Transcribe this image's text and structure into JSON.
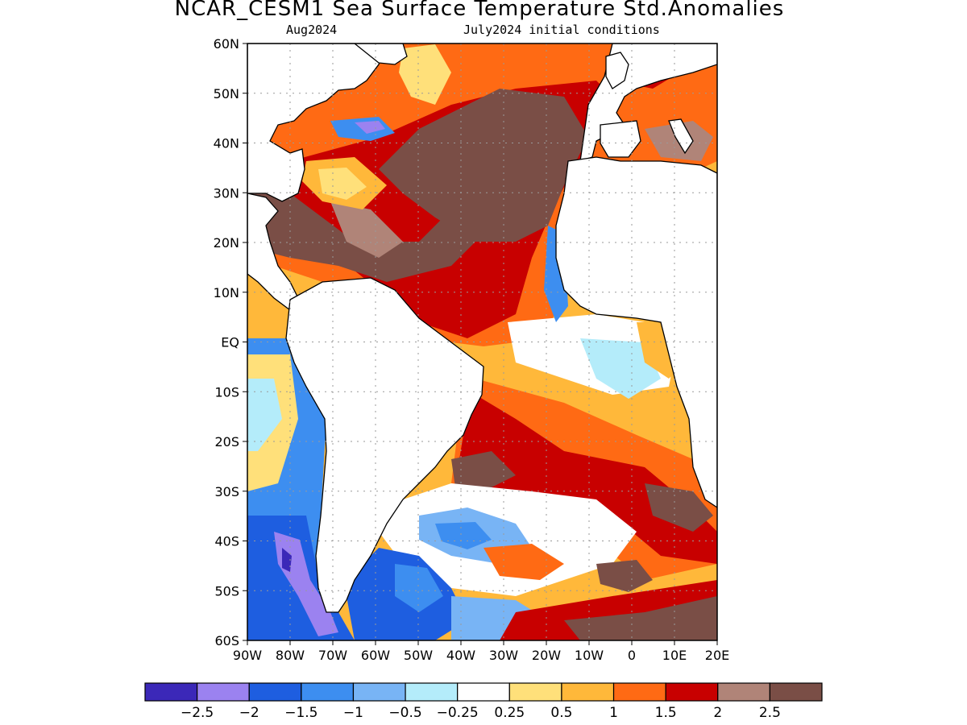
{
  "title": "NCAR_CESM1 Sea Surface Temperature Std.Anomalies",
  "subtitle_left": "Aug2024",
  "subtitle_right": "July2024 initial conditions",
  "lat_labels": [
    "60N",
    "50N",
    "40N",
    "30N",
    "20N",
    "10N",
    "EQ",
    "10S",
    "20S",
    "30S",
    "40S",
    "50S",
    "60S"
  ],
  "lon_labels": [
    "90W",
    "80W",
    "70W",
    "60W",
    "50W",
    "40W",
    "30W",
    "20W",
    "10W",
    "0",
    "10E",
    "20E"
  ],
  "colorbar": {
    "colors": [
      "#3b28b8",
      "#9b82f0",
      "#1e5ee0",
      "#3d8ef0",
      "#78b4f5",
      "#b4ecfa",
      "#ffffff",
      "#ffe07a",
      "#ffb83a",
      "#ff6a14",
      "#c80000",
      "#b08478",
      "#7a4e46"
    ],
    "labels": [
      "−2.5",
      "−2",
      "−1.5",
      "−1",
      "−0.5",
      "−0.25",
      "0.25",
      "0.5",
      "1",
      "1.5",
      "2",
      "2.5"
    ]
  },
  "map_colors": {
    "land": "#ffffff",
    "coast": "#000000",
    "grid": "#9a9a9a",
    "frame": "#000000"
  }
}
